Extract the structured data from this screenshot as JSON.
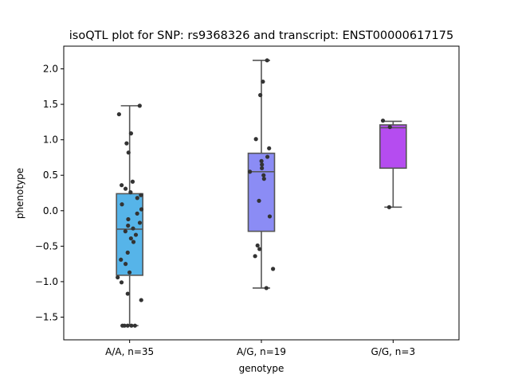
{
  "chart_data": {
    "type": "box",
    "title": "isoQTL plot for SNP: rs9368326 and transcript: ENST00000617175",
    "xlabel": "genotype",
    "ylabel": "phenotype",
    "ylim": [
      -1.82,
      2.32
    ],
    "yticks": [
      -1.5,
      -1.0,
      -0.5,
      0.0,
      0.5,
      1.0,
      1.5,
      2.0
    ],
    "ytick_labels": [
      "−1.5",
      "−1.0",
      "−0.5",
      "0.0",
      "0.5",
      "1.0",
      "1.5",
      "2.0"
    ],
    "grid": false,
    "categories": [
      "A/A, n=35",
      "A/G, n=19",
      "G/G, n=3"
    ],
    "colors": [
      "#56b4e9",
      "#8b8cf5",
      "#b54cf0"
    ],
    "point_color": "#333333",
    "boxes": [
      {
        "category": "A/A, n=35",
        "whisker_low": -1.62,
        "q1": -0.91,
        "median": -0.26,
        "q3": 0.24,
        "whisker_high": 1.48
      },
      {
        "category": "A/G, n=19",
        "whisker_low": -1.09,
        "q1": -0.29,
        "median": 0.55,
        "q3": 0.81,
        "whisker_high": 2.12
      },
      {
        "category": "G/G, n=3",
        "whisker_low": 0.05,
        "q1": 0.6,
        "median": 1.17,
        "q3": 1.21,
        "whisker_high": 1.26
      }
    ],
    "points": [
      {
        "category": "A/A, n=35",
        "values": [
          1.48,
          1.36,
          1.09,
          0.95,
          0.82,
          0.41,
          0.36,
          0.31,
          0.26,
          0.22,
          0.18,
          0.09,
          0.02,
          -0.04,
          -0.12,
          -0.17,
          -0.21,
          -0.25,
          -0.29,
          -0.34,
          -0.39,
          -0.44,
          -0.59,
          -0.69,
          -0.75,
          -0.87,
          -0.94,
          -1.01,
          -1.17,
          -1.26,
          -1.62,
          -1.62,
          -1.62,
          -1.62,
          -1.62
        ]
      },
      {
        "category": "A/G, n=19",
        "values": [
          2.12,
          1.82,
          1.63,
          1.01,
          0.88,
          0.76,
          0.7,
          0.65,
          0.6,
          0.55,
          0.5,
          0.45,
          0.14,
          -0.08,
          -0.49,
          -0.54,
          -0.64,
          -0.82,
          -1.09
        ]
      },
      {
        "category": "G/G, n=3",
        "values": [
          1.27,
          1.18,
          0.05
        ]
      }
    ]
  }
}
